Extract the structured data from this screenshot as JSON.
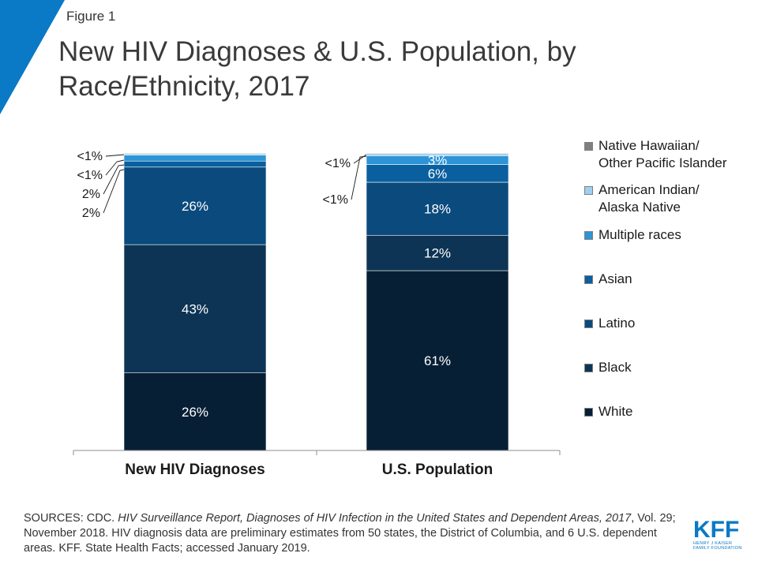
{
  "figure_label": "Figure 1",
  "title_line1": "New HIV Diagnoses & U.S. Population, by",
  "title_line2": "Race/Ethnicity, 2017",
  "colors": {
    "corner_accent": "#0a79c6",
    "white": "#071f35",
    "black": "#0d3454",
    "latino": "#0b4a7d",
    "asian": "#0a5f9e",
    "multiple": "#2e94d6",
    "aian": "#9fd0ef",
    "nhopi": "#7f7f7f"
  },
  "chart_data": {
    "type": "bar",
    "stacked": true,
    "categories": [
      "New HIV Diagnoses",
      "U.S. Population"
    ],
    "series": [
      {
        "name": "White",
        "values": [
          26,
          61
        ],
        "labels": [
          "26%",
          "61%"
        ],
        "color_key": "white"
      },
      {
        "name": "Black",
        "values": [
          43,
          12
        ],
        "labels": [
          "43%",
          "12%"
        ],
        "color_key": "black"
      },
      {
        "name": "Latino",
        "values": [
          26,
          18
        ],
        "labels": [
          "26%",
          "18%"
        ],
        "color_key": "latino"
      },
      {
        "name": "Asian",
        "values": [
          2,
          6
        ],
        "labels": [
          "2%",
          "6%"
        ],
        "color_key": "asian"
      },
      {
        "name": "Multiple races",
        "values": [
          2,
          3
        ],
        "labels": [
          "2%",
          "3%"
        ],
        "color_key": "multiple"
      },
      {
        "name": "American Indian/ Alaska Native",
        "values": [
          0.5,
          0.7
        ],
        "labels": [
          "<1%",
          "<1%"
        ],
        "color_key": "aian"
      },
      {
        "name": "Native Hawaiian/ Other Pacific Islander",
        "values": [
          0.2,
          0.2
        ],
        "labels": [
          "<1%",
          "<1%"
        ],
        "color_key": "nhopi"
      }
    ],
    "ylim": [
      0,
      100
    ],
    "grid": false,
    "legend_position": "right",
    "inside_labels": [
      {
        "bar": 0,
        "series": 0,
        "text": "26%"
      },
      {
        "bar": 0,
        "series": 1,
        "text": "43%"
      },
      {
        "bar": 0,
        "series": 2,
        "text": "26%"
      },
      {
        "bar": 1,
        "series": 0,
        "text": "61%"
      },
      {
        "bar": 1,
        "series": 1,
        "text": "12%"
      },
      {
        "bar": 1,
        "series": 2,
        "text": "18%"
      },
      {
        "bar": 1,
        "series": 3,
        "text": "6%"
      },
      {
        "bar": 1,
        "series": 4,
        "text": "3%"
      }
    ],
    "callout_labels": [
      {
        "bar": 0,
        "series": 6,
        "text": "<1%"
      },
      {
        "bar": 0,
        "series": 5,
        "text": "<1%"
      },
      {
        "bar": 0,
        "series": 4,
        "text": "2%"
      },
      {
        "bar": 0,
        "series": 3,
        "text": "2%"
      },
      {
        "bar": 1,
        "series": 6,
        "text": "<1%"
      },
      {
        "bar": 1,
        "series": 5,
        "text": "<1%"
      }
    ]
  },
  "legend": [
    {
      "line1": "Native Hawaiian/",
      "line2": "Other Pacific Islander",
      "color_key": "nhopi"
    },
    {
      "line1": "American Indian/",
      "line2": "Alaska Native",
      "color_key": "aian"
    },
    {
      "line1": "Multiple races",
      "line2": "",
      "color_key": "multiple"
    },
    {
      "line1": "Asian",
      "line2": "",
      "color_key": "asian"
    },
    {
      "line1": "Latino",
      "line2": "",
      "color_key": "latino"
    },
    {
      "line1": "Black",
      "line2": "",
      "color_key": "black"
    },
    {
      "line1": "White",
      "line2": "",
      "color_key": "white"
    }
  ],
  "sources": {
    "prefix": "SOURCES: CDC. ",
    "italic_title": "HIV Surveillance Report, Diagnoses of HIV Infection in the United States and Dependent Areas, 2017",
    "rest": ", Vol. 29; November 2018. HIV diagnosis data are preliminary estimates from 50 states, the District of Columbia, and 6 U.S. dependent areas. KFF. State Health Facts; accessed January 2019."
  },
  "logo": {
    "mark": "KFF",
    "sub_line1": "HENRY J KAISER",
    "sub_line2": "FAMILY FOUNDATION"
  }
}
